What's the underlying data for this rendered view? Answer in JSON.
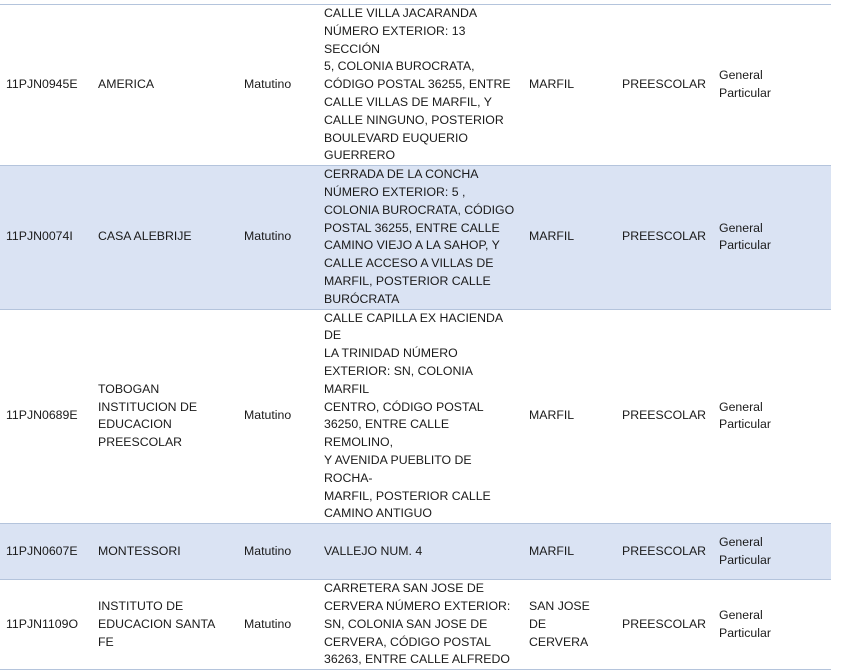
{
  "rows": [
    {
      "clave": "11PJN0945E",
      "nombre": "AMERICA",
      "turno": "Matutino",
      "domicilio": "CALLE VILLA JACARANDA\nNÚMERO EXTERIOR: 13 SECCIÓN\n5, COLONIA BUROCRATA,\nCÓDIGO POSTAL 36255, ENTRE\nCALLE VILLAS DE MARFIL, Y\nCALLE NINGUNO, POSTERIOR\nBOULEVARD EUQUERIO\nGUERRERO",
      "localidad": "MARFIL",
      "nivel": "PREESCOLAR",
      "tipo": "General\nParticular"
    },
    {
      "clave": "11PJN0074I",
      "nombre": "CASA ALEBRIJE",
      "turno": "Matutino",
      "domicilio": "CERRADA DE LA CONCHA\nNÚMERO EXTERIOR: 5 ,\nCOLONIA BUROCRATA, CÓDIGO\nPOSTAL 36255, ENTRE CALLE\nCAMINO VIEJO A LA SAHOP, Y\nCALLE ACCESO A VILLAS DE\nMARFIL, POSTERIOR CALLE\nBURÓCRATA",
      "localidad": "MARFIL",
      "nivel": "PREESCOLAR",
      "tipo": "General\nParticular"
    },
    {
      "clave": "11PJN0689E",
      "nombre": "TOBOGAN\nINSTITUCION DE\nEDUCACION\nPREESCOLAR",
      "turno": "Matutino",
      "domicilio": "CALLE CAPILLA EX HACIENDA DE\nLA TRINIDAD NÚMERO\nEXTERIOR: SN, COLONIA MARFIL\nCENTRO, CÓDIGO POSTAL\n36250, ENTRE CALLE REMOLINO,\nY AVENIDA PUEBLITO DE ROCHA-\nMARFIL, POSTERIOR CALLE\nCAMINO ANTIGUO",
      "localidad": "MARFIL",
      "nivel": "PREESCOLAR",
      "tipo": "General\nParticular"
    },
    {
      "clave": "11PJN0607E",
      "nombre": "MONTESSORI",
      "turno": "Matutino",
      "domicilio": "VALLEJO NUM. 4",
      "localidad": "MARFIL",
      "nivel": "PREESCOLAR",
      "tipo": "General\nParticular"
    },
    {
      "clave": "11PJN1109O",
      "nombre": "INSTITUTO DE\nEDUCACION SANTA FE",
      "turno": "Matutino",
      "domicilio": "CARRETERA SAN JOSE DE\nCERVERA NÚMERO EXTERIOR:\nSN, COLONIA SAN JOSE DE\nCERVERA, CÓDIGO POSTAL\n36263, ENTRE CALLE ALFREDO",
      "localidad": "SAN JOSE DE\nCERVERA",
      "nivel": "PREESCOLAR",
      "tipo": "General\nParticular"
    }
  ]
}
